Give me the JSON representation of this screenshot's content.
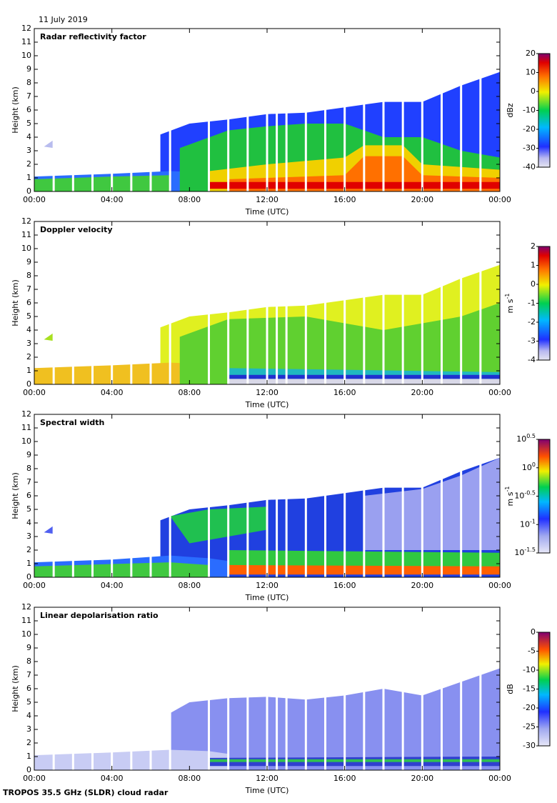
{
  "date": "11 July 2019",
  "footer": "TROPOS 35.5 GHz (SLDR) cloud radar",
  "chart_data": [
    {
      "type": "heatmap",
      "title": "Radar reflectivity factor",
      "xlabel": "Time (UTC)",
      "ylabel": "Height (km)",
      "xlim": [
        0,
        24
      ],
      "xticks": [
        {
          "value": 0,
          "label": "00:00"
        },
        {
          "value": 4,
          "label": "04:00"
        },
        {
          "value": 8,
          "label": "08:00"
        },
        {
          "value": 12,
          "label": "12:00"
        },
        {
          "value": 16,
          "label": "16:00"
        },
        {
          "value": 20,
          "label": "20:00"
        },
        {
          "value": 24,
          "label": "00:00"
        }
      ],
      "ylim": [
        0,
        12
      ],
      "yticks": [
        0,
        1,
        2,
        3,
        4,
        5,
        6,
        7,
        8,
        9,
        10,
        11,
        12
      ],
      "colorbar": {
        "label": "dBz",
        "lim": [
          -40,
          20
        ],
        "ticks": [
          -40,
          -30,
          -20,
          -10,
          0,
          10,
          20
        ]
      }
    },
    {
      "type": "heatmap",
      "title": "Doppler velocity",
      "xlabel": "Time (UTC)",
      "ylabel": "Height (km)",
      "xlim": [
        0,
        24
      ],
      "xticks": [
        {
          "value": 0,
          "label": "00:00"
        },
        {
          "value": 4,
          "label": "04:00"
        },
        {
          "value": 8,
          "label": "08:00"
        },
        {
          "value": 12,
          "label": "12:00"
        },
        {
          "value": 16,
          "label": "16:00"
        },
        {
          "value": 20,
          "label": "20:00"
        },
        {
          "value": 24,
          "label": "00:00"
        }
      ],
      "ylim": [
        0,
        12
      ],
      "yticks": [
        0,
        1,
        2,
        3,
        4,
        5,
        6,
        7,
        8,
        9,
        10,
        11,
        12
      ],
      "colorbar": {
        "label": "m s",
        "label_exponent": "-1",
        "lim": [
          -4,
          2
        ],
        "ticks": [
          -4,
          -3,
          -2,
          -1,
          0,
          1,
          2
        ]
      }
    },
    {
      "type": "heatmap",
      "title": "Spectral width",
      "xlabel": "Time (UTC)",
      "ylabel": "Height (km)",
      "xlim": [
        0,
        24
      ],
      "xticks": [
        {
          "value": 0,
          "label": "00:00"
        },
        {
          "value": 4,
          "label": "04:00"
        },
        {
          "value": 8,
          "label": "08:00"
        },
        {
          "value": 12,
          "label": "12:00"
        },
        {
          "value": 16,
          "label": "16:00"
        },
        {
          "value": 20,
          "label": "20:00"
        },
        {
          "value": 24,
          "label": "00:00"
        }
      ],
      "ylim": [
        0,
        12
      ],
      "yticks": [
        0,
        1,
        2,
        3,
        4,
        5,
        6,
        7,
        8,
        9,
        10,
        11,
        12
      ],
      "colorbar": {
        "label": "m s",
        "label_exponent": "-1",
        "log_scale": true,
        "lim": [
          -1.5,
          0.5
        ],
        "ticks": [
          {
            "value": -1.5,
            "label": "10"
          },
          {
            "value": -1,
            "label": "10"
          },
          {
            "value": -0.5,
            "label": "10"
          },
          {
            "value": 0,
            "label": "10"
          },
          {
            "value": 0.5,
            "label": "10"
          }
        ]
      }
    },
    {
      "type": "heatmap",
      "title": "Linear depolarisation ratio",
      "xlabel": "Time (UTC)",
      "ylabel": "Height (km)",
      "xlim": [
        0,
        24
      ],
      "xticks": [
        {
          "value": 0,
          "label": "00:00"
        },
        {
          "value": 4,
          "label": "04:00"
        },
        {
          "value": 8,
          "label": "08:00"
        },
        {
          "value": 12,
          "label": "12:00"
        },
        {
          "value": 16,
          "label": "16:00"
        },
        {
          "value": 20,
          "label": "20:00"
        },
        {
          "value": 24,
          "label": "00:00"
        }
      ],
      "ylim": [
        0,
        12
      ],
      "yticks": [
        0,
        1,
        2,
        3,
        4,
        5,
        6,
        7,
        8,
        9,
        10,
        11,
        12
      ],
      "colorbar": {
        "label": "dB",
        "lim": [
          -30,
          0
        ],
        "ticks": [
          -30,
          -25,
          -20,
          -15,
          -10,
          -5,
          0
        ]
      }
    }
  ]
}
